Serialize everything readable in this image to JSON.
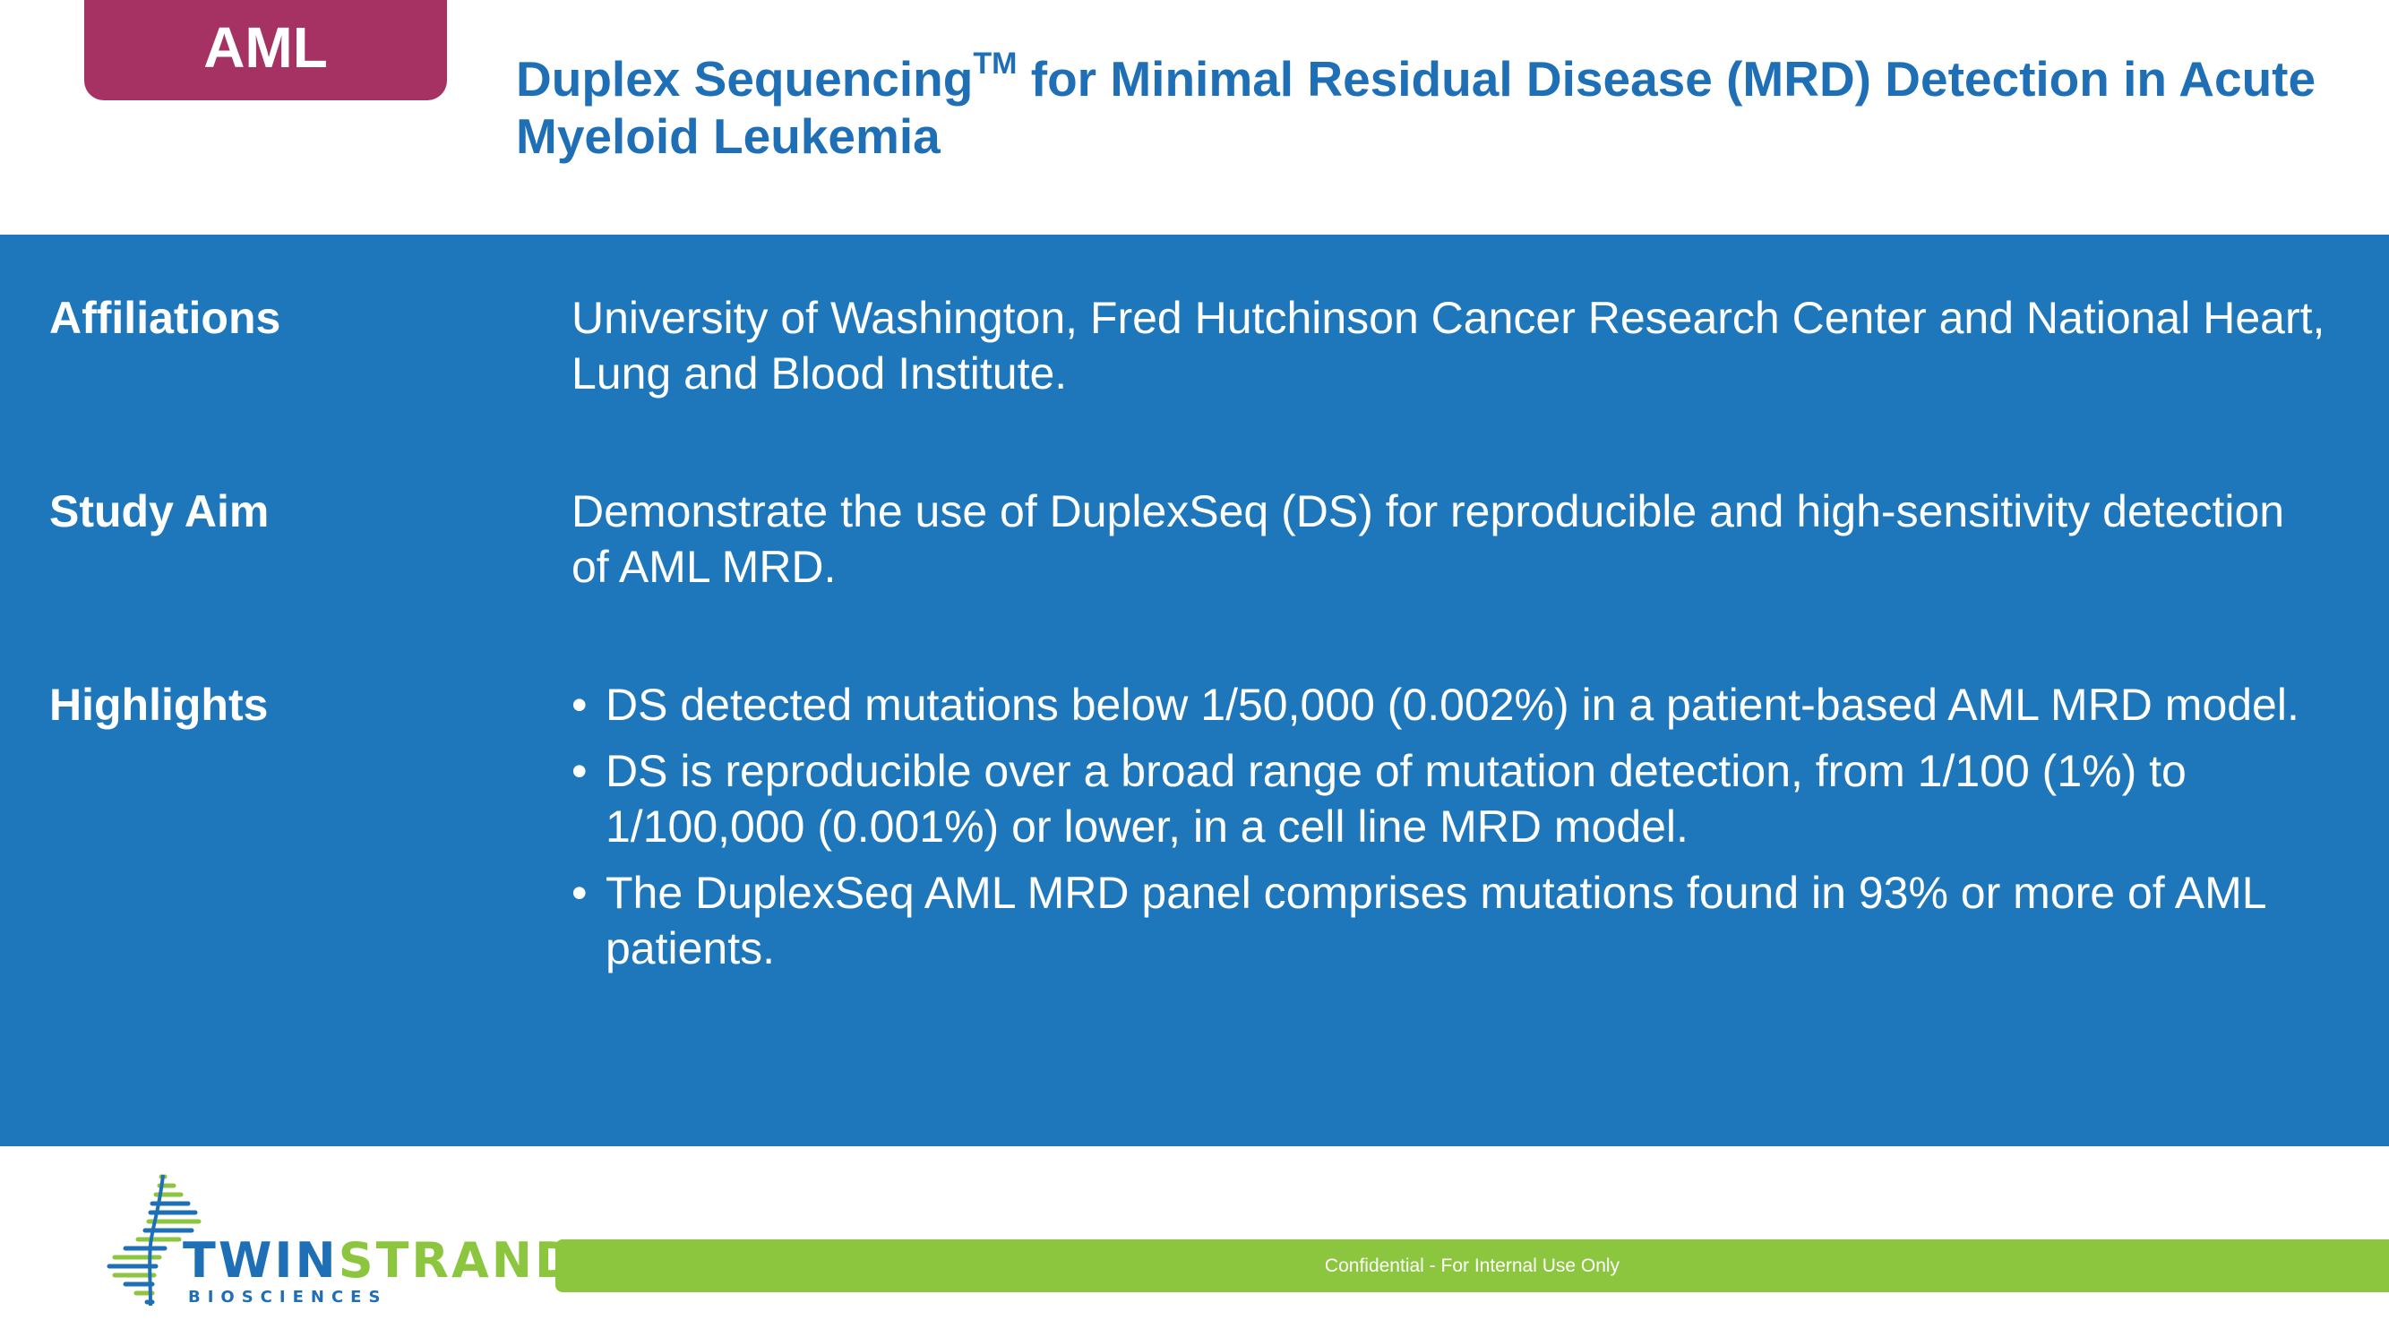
{
  "tag": "AML",
  "title": {
    "main_before": "Duplex Sequencing",
    "trademark": "TM",
    "main_after": " for Minimal Residual Disease (MRD) Detection in Acute Myeloid Leukemia"
  },
  "rows": {
    "affiliations": {
      "label": "Affiliations",
      "value": "University of Washington, Fred Hutchinson Cancer Research Center and National Heart, Lung and Blood Institute."
    },
    "study_aim": {
      "label": "Study Aim",
      "value": "Demonstrate the use of DuplexSeq (DS) for reproducible and high-sensitivity detection of AML MRD."
    },
    "highlights": {
      "label": "Highlights",
      "bullet_symbol": "•",
      "items": [
        " DS detected mutations below 1/50,000 (0.002%)  in a patient-based AML MRD model.",
        " DS is reproducible over a broad range of mutation detection, from 1/100 (1%) to 1/100,000 (0.001%) or lower, in a cell line MRD model.",
        " The DuplexSeq AML MRD panel comprises mutations found in 93% or more of AML patients."
      ]
    }
  },
  "logo": {
    "word_part1": "TWIN",
    "word_part2": "STRAND",
    "trademark": "™",
    "subtitle": "BIOSCIENCES"
  },
  "footer": {
    "text": "Confidential - For Internal Use Only"
  },
  "colors": {
    "brand_blue": "#1f77bb",
    "title_blue": "#1e6fb5",
    "tag_magenta": "#a53263",
    "brand_green": "#8cc63f"
  }
}
